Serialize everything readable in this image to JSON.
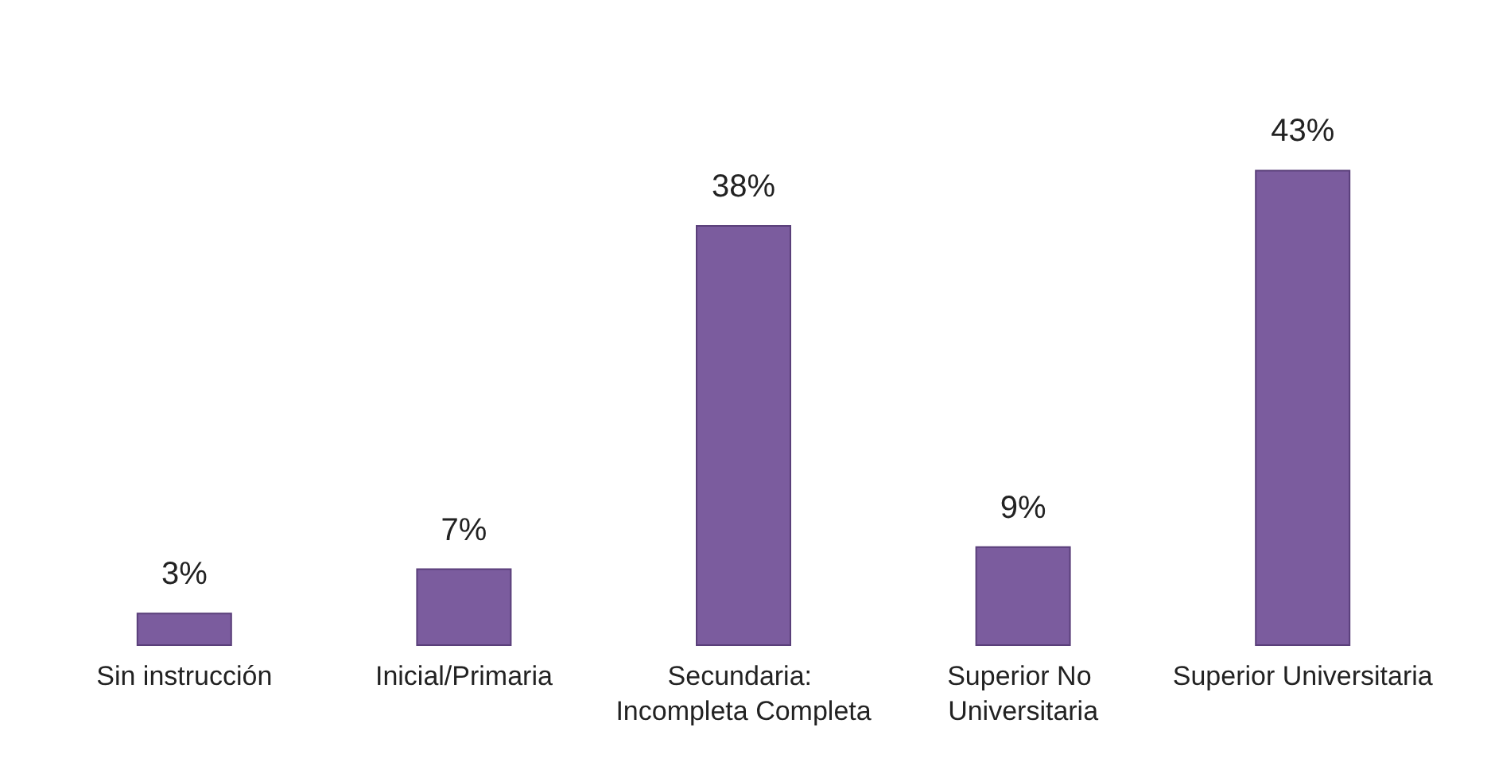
{
  "chart_data": {
    "type": "bar",
    "categories": [
      "Sin instrucción",
      "Inicial/Primaria",
      "Secundaria: Incompleta Completa",
      "Superior No Universitaria",
      "Superior Universitaria"
    ],
    "values": [
      3,
      7,
      38,
      9,
      43
    ],
    "value_labels": [
      "3%",
      "7%",
      "38%",
      "9%",
      "43%"
    ],
    "color": "#7b5c9e"
  }
}
